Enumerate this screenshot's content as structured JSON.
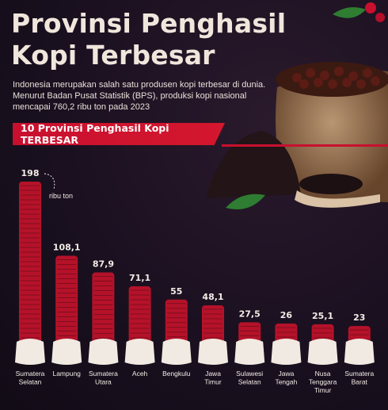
{
  "header": {
    "title_line1": "Provinsi Penghasil",
    "title_line2": "Kopi Terbesar",
    "subtitle": "Indonesia merupakan salah satu produsen kopi terbesar di dunia. Menurut Badan Pusat Statistik (BPS), produksi kopi nasional mencapai 760,2 ribu ton pada 2023",
    "banner": "10 Provinsi Penghasil Kopi TERBESAR"
  },
  "colors": {
    "accent": "#c8102e",
    "bar": "#b5122a",
    "sack": "#f0eae2",
    "background": "#1a1020"
  },
  "chart_data": {
    "type": "bar",
    "unit_note": "ribu ton",
    "categories": [
      [
        "Sumatera",
        "Selatan"
      ],
      [
        "Lampung"
      ],
      [
        "Sumatera",
        "Utara"
      ],
      [
        "Aceh"
      ],
      [
        "Bengkulu"
      ],
      [
        "Jawa",
        "Timur"
      ],
      [
        "Sulawesi",
        "Selatan"
      ],
      [
        "Jawa",
        "Tengah"
      ],
      [
        "Nusa",
        "Tenggara",
        "Timur"
      ],
      [
        "Sumatera",
        "Barat"
      ]
    ],
    "values": [
      198,
      108.1,
      87.9,
      71.1,
      55,
      48.1,
      27.5,
      26,
      25.1,
      23
    ],
    "labels": [
      "198",
      "108,1",
      "87,9",
      "71,1",
      "55",
      "48,1",
      "27,5",
      "26",
      "25,1",
      "23"
    ],
    "ylim": [
      0,
      198
    ]
  }
}
